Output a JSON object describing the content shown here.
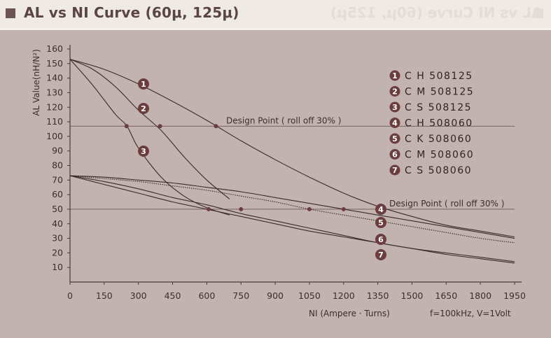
{
  "title": "AL vs NI Curve (60μ, 125μ)",
  "title_ghost": "AL vs NI Curve (60μ, 125μ)",
  "colors": {
    "plot_bg": "#c2b2b0",
    "curve": "#3a2a2a",
    "marker": "#6b3d3d",
    "grid": "#9a8686"
  },
  "chart_data": {
    "type": "line",
    "title": "AL vs NI Curve (60μ, 125μ)",
    "xlabel": "NI (Ampere · Turns)",
    "ylabel": "AL Value(nH/N²)",
    "note": "f=100kHz, V=1Volt",
    "xlim": [
      0,
      1950
    ],
    "ylim": [
      0,
      160
    ],
    "x_ticks": [
      0,
      150,
      300,
      450,
      600,
      750,
      900,
      1050,
      1200,
      1350,
      1500,
      1650,
      1800,
      1950
    ],
    "y_ticks": [
      10,
      20,
      30,
      40,
      50,
      60,
      70,
      80,
      90,
      100,
      110,
      120,
      130,
      140,
      150,
      160
    ],
    "design_lines": [
      {
        "y": 107,
        "label": "Design Point ( roll off 30% )"
      },
      {
        "y": 50,
        "label": "Design Point ( roll off 30% )"
      }
    ],
    "series": [
      {
        "name": "C H 508125",
        "marker": "1",
        "points": [
          [
            0,
            153
          ],
          [
            150,
            146
          ],
          [
            300,
            136
          ],
          [
            450,
            124
          ],
          [
            600,
            111
          ],
          [
            750,
            97
          ],
          [
            900,
            84
          ],
          [
            1050,
            72
          ],
          [
            1200,
            61
          ],
          [
            1350,
            52
          ],
          [
            1500,
            45
          ],
          [
            1650,
            39
          ],
          [
            1800,
            35
          ],
          [
            1950,
            31
          ]
        ],
        "design_point": [
          640,
          107
        ],
        "label_at": [
          330,
          136
        ]
      },
      {
        "name": "C M 508125",
        "marker": "2",
        "points": [
          [
            0,
            153
          ],
          [
            100,
            146
          ],
          [
            200,
            134
          ],
          [
            300,
            118
          ],
          [
            400,
            104
          ],
          [
            500,
            86
          ],
          [
            600,
            70
          ],
          [
            700,
            57
          ]
        ],
        "design_point": [
          395,
          107
        ],
        "label_at": [
          330,
          120
        ]
      },
      {
        "name": "C S 508125",
        "marker": "3",
        "points": [
          [
            0,
            153
          ],
          [
            100,
            135
          ],
          [
            200,
            115
          ],
          [
            250,
            107
          ],
          [
            300,
            92
          ],
          [
            400,
            72
          ],
          [
            500,
            59
          ],
          [
            600,
            51
          ],
          [
            700,
            46
          ]
        ],
        "design_point": [
          248,
          107
        ],
        "label_at": [
          330,
          90
        ]
      },
      {
        "name": "C H 508060",
        "marker": "4",
        "points": [
          [
            0,
            73
          ],
          [
            150,
            72
          ],
          [
            300,
            70
          ],
          [
            450,
            68
          ],
          [
            600,
            65
          ],
          [
            750,
            62
          ],
          [
            900,
            58
          ],
          [
            1050,
            54
          ],
          [
            1200,
            50
          ],
          [
            1350,
            46
          ],
          [
            1500,
            42
          ],
          [
            1650,
            38
          ],
          [
            1800,
            34
          ],
          [
            1950,
            30
          ]
        ],
        "design_point": [
          1200,
          50
        ],
        "label_at": [
          1365,
          50
        ]
      },
      {
        "name": "C K 508060",
        "marker": "5",
        "points": [
          [
            0,
            73
          ],
          [
            150,
            71
          ],
          [
            300,
            69
          ],
          [
            450,
            66
          ],
          [
            600,
            63
          ],
          [
            750,
            59
          ],
          [
            900,
            55
          ],
          [
            1050,
            50
          ],
          [
            1200,
            46
          ],
          [
            1350,
            42
          ],
          [
            1500,
            38
          ],
          [
            1650,
            34
          ],
          [
            1800,
            30
          ],
          [
            1950,
            27
          ]
        ],
        "design_point": [
          1050,
          50
        ],
        "label_at": [
          1365,
          40
        ]
      },
      {
        "name": "C M 508060",
        "marker": "6",
        "points": [
          [
            0,
            73
          ],
          [
            150,
            69
          ],
          [
            300,
            64
          ],
          [
            450,
            58
          ],
          [
            600,
            53
          ],
          [
            750,
            47
          ],
          [
            900,
            42
          ],
          [
            1050,
            37
          ],
          [
            1200,
            32
          ],
          [
            1350,
            27
          ],
          [
            1500,
            23
          ],
          [
            1650,
            19
          ],
          [
            1800,
            16
          ],
          [
            1950,
            13
          ]
        ],
        "design_point": [
          750,
          50
        ],
        "label_at": [
          1365,
          27
        ]
      },
      {
        "name": "C S 508060",
        "marker": "7",
        "points": [
          [
            0,
            73
          ],
          [
            150,
            67
          ],
          [
            300,
            61
          ],
          [
            450,
            55
          ],
          [
            600,
            50
          ],
          [
            750,
            45
          ],
          [
            900,
            40
          ],
          [
            1050,
            35
          ],
          [
            1200,
            31
          ],
          [
            1350,
            27
          ],
          [
            1500,
            23
          ],
          [
            1650,
            20
          ],
          [
            1800,
            17
          ],
          [
            1950,
            14
          ]
        ],
        "design_point": [
          608,
          50
        ],
        "label_at": [
          1365,
          17
        ]
      }
    ],
    "legend": [
      {
        "num": "1",
        "name": "C H 508125"
      },
      {
        "num": "2",
        "name": "C M 508125"
      },
      {
        "num": "3",
        "name": "C S 508125"
      },
      {
        "num": "4",
        "name": "C H 508060"
      },
      {
        "num": "5",
        "name": "C K 508060"
      },
      {
        "num": "6",
        "name": "C M 508060"
      },
      {
        "num": "7",
        "name": "C S 508060"
      }
    ]
  }
}
